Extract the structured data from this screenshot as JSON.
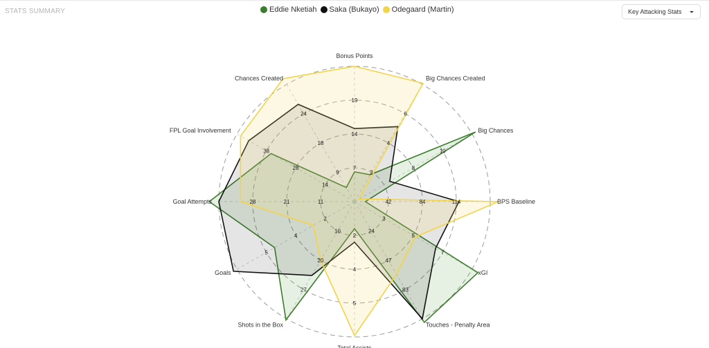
{
  "header": {
    "section_title": "STATS SUMMARY",
    "dropdown": {
      "selected": "Key Attacking Stats",
      "icon": "chevron-down-icon"
    }
  },
  "chart_data": {
    "type": "radar",
    "title": "",
    "legend_placement": "top-center",
    "grid": "dashed concentric circles",
    "axes": [
      {
        "label": "Bonus Points",
        "ticks": [
          "7",
          "14",
          "19"
        ]
      },
      {
        "label": "Big Chances Created",
        "ticks": [
          "2",
          "4",
          "6"
        ]
      },
      {
        "label": "Big Chances",
        "ticks": [
          "8",
          "10"
        ]
      },
      {
        "label": "BPS Baseline",
        "ticks": [
          "42",
          "84",
          "114"
        ]
      },
      {
        "label": "xGI",
        "ticks": [
          "3",
          "5",
          "7"
        ]
      },
      {
        "label": "Touches - Penalty Area",
        "ticks": [
          "24",
          "47",
          "83"
        ]
      },
      {
        "label": "Total Assists",
        "ticks": [
          "2",
          "4",
          "5"
        ]
      },
      {
        "label": "Shots in the Box",
        "ticks": [
          "10",
          "20",
          "27"
        ]
      },
      {
        "label": "Goals",
        "ticks": [
          "2",
          "4",
          "5"
        ]
      },
      {
        "label": "Goal Attempts",
        "ticks": [
          "11",
          "21",
          "28"
        ]
      },
      {
        "label": "FPL Goal Involvement",
        "ticks": [
          "14",
          "28",
          "38"
        ]
      },
      {
        "label": "Chances Created",
        "ticks": [
          "9",
          "18",
          "24"
        ]
      }
    ],
    "series": [
      {
        "name": "Eddie Nketiah",
        "color": "#3a7d2c",
        "fill": "rgba(76,150,60,0.14)",
        "values": [
          0.22,
          0.23,
          1.03,
          0.08,
          1.05,
          1.03,
          0.2,
          1.01,
          0.68,
          1.07,
          0.71,
          0.12
        ]
      },
      {
        "name": "Saka (Bukayo)",
        "color": "#111111",
        "fill": "rgba(40,40,40,0.12)",
        "values": [
          0.54,
          0.64,
          0.3,
          0.77,
          0.69,
          1.0,
          0.3,
          0.63,
          1.03,
          1.0,
          0.9,
          0.83
        ]
      },
      {
        "name": "Odegaard (Martin)",
        "color": "#f2d34a",
        "fill": "rgba(246,222,120,0.2)",
        "values": [
          1.0,
          1.01,
          0.04,
          1.06,
          0.52,
          0.62,
          0.99,
          0.5,
          0.35,
          0.84,
          0.97,
          1.05
        ]
      }
    ]
  }
}
